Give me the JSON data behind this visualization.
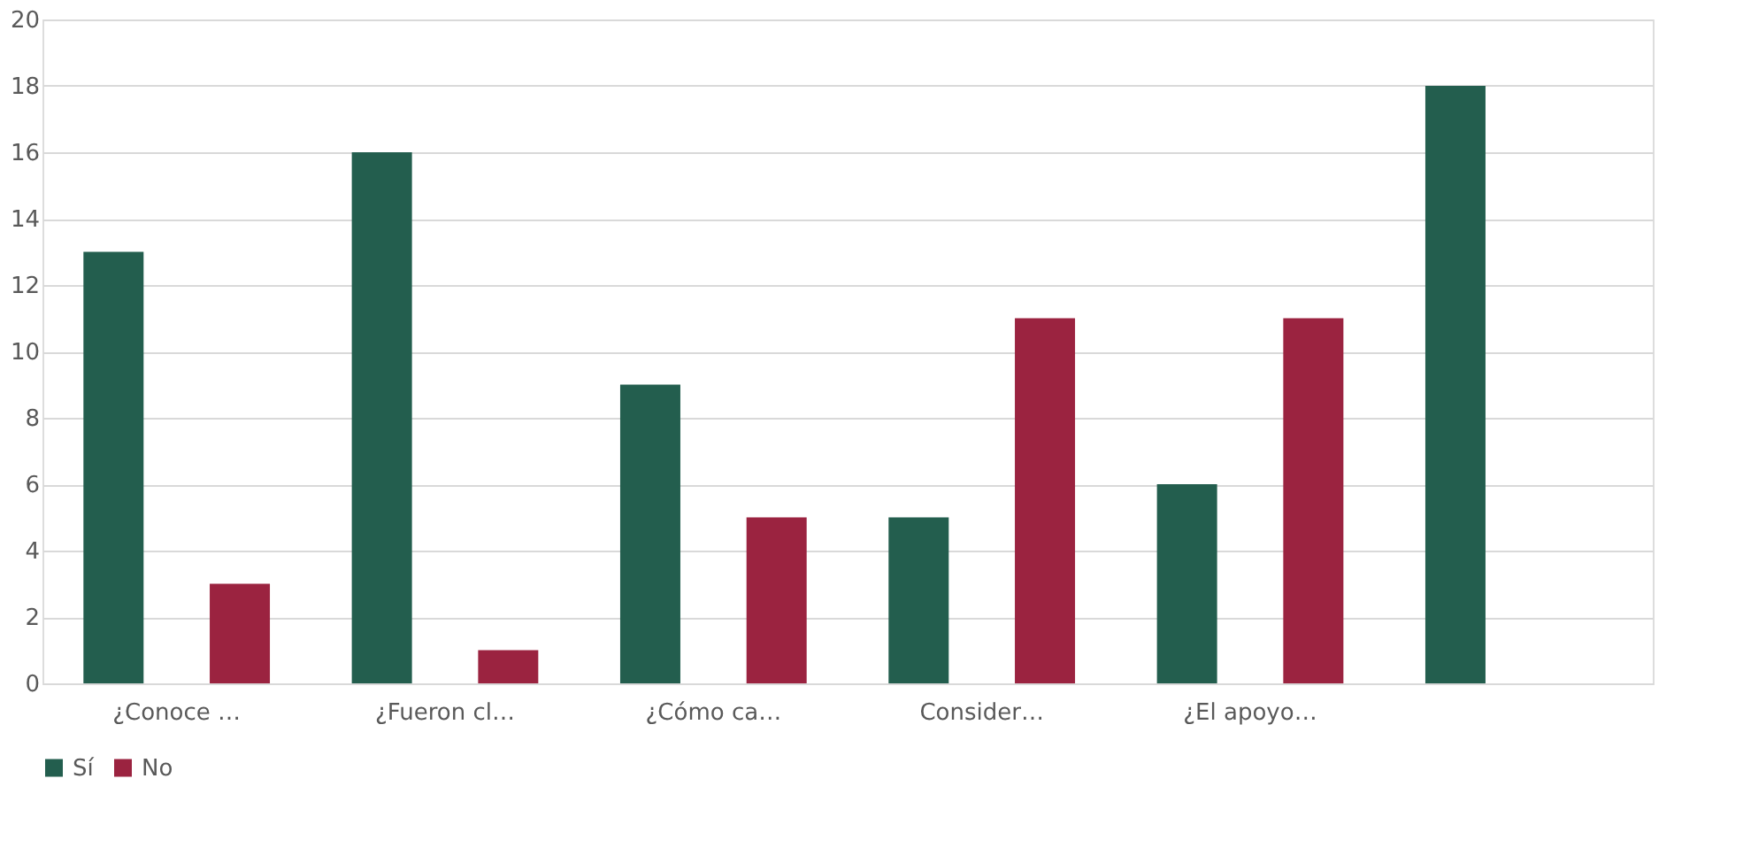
{
  "chart_data": {
    "type": "bar",
    "categories": [
      "¿Conoce …",
      "¿Fueron cl…",
      "¿Cómo ca…",
      "Consider…",
      "¿El apoyo…",
      null
    ],
    "series": [
      {
        "name": "Sí",
        "color": "#235e4e",
        "values": [
          13,
          16,
          9,
          5,
          6,
          18
        ]
      },
      {
        "name": "No",
        "color": "#9b2340",
        "values": [
          3,
          1,
          5,
          11,
          11,
          null
        ]
      }
    ],
    "ylim": [
      0,
      20
    ],
    "yticks": [
      0,
      2,
      4,
      6,
      8,
      10,
      12,
      14,
      16,
      18,
      20
    ],
    "grid": "y",
    "legend": "bottom"
  }
}
